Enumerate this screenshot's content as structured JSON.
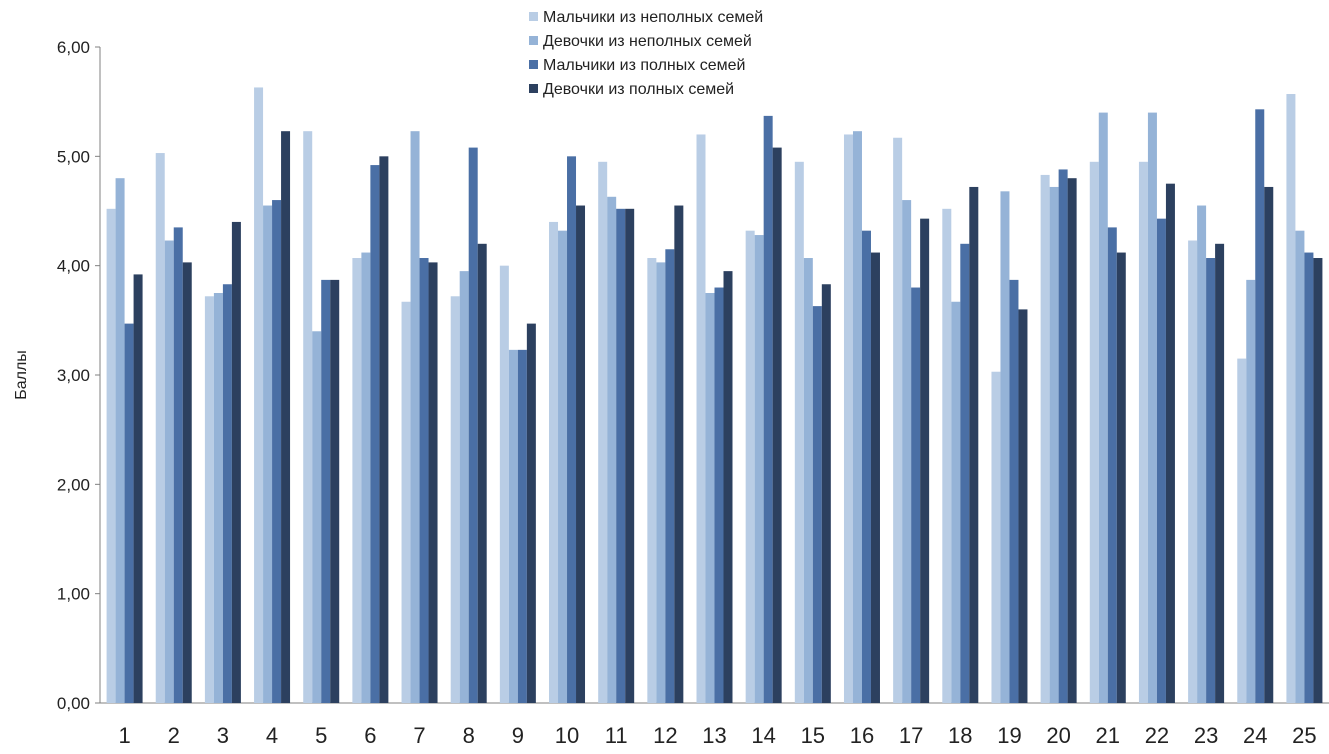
{
  "chart_data": {
    "type": "bar",
    "title": "",
    "xlabel": "",
    "ylabel": "Баллы",
    "ylim": [
      0,
      6
    ],
    "yticks": [
      "0,00",
      "1,00",
      "2,00",
      "3,00",
      "4,00",
      "5,00",
      "6,00"
    ],
    "grid": false,
    "legend_position": "top-center",
    "categories": [
      "1",
      "2",
      "3",
      "4",
      "5",
      "6",
      "7",
      "8",
      "9",
      "10",
      "11",
      "12",
      "13",
      "14",
      "15",
      "16",
      "17",
      "18",
      "19",
      "20",
      "21",
      "22",
      "23",
      "24",
      "25"
    ],
    "series": [
      {
        "name": "Мальчики из неполных семей",
        "color": "#b9cde5",
        "values": [
          4.52,
          5.03,
          3.72,
          5.63,
          5.23,
          4.07,
          3.67,
          3.72,
          4.0,
          4.4,
          4.95,
          4.07,
          5.2,
          4.32,
          4.95,
          5.2,
          5.17,
          4.52,
          3.03,
          4.83,
          4.95,
          4.95,
          4.23,
          3.15,
          5.57
        ]
      },
      {
        "name": "Девочки из неполных семей",
        "color": "#95b3d7",
        "values": [
          4.8,
          4.23,
          3.75,
          4.55,
          3.4,
          4.12,
          5.23,
          3.95,
          3.23,
          4.32,
          4.63,
          4.03,
          3.75,
          4.28,
          4.07,
          5.23,
          4.6,
          3.67,
          4.68,
          4.72,
          5.4,
          5.4,
          4.55,
          3.87,
          4.32
        ]
      },
      {
        "name": "Мальчики из полных семей",
        "color": "#4a6fa5",
        "values": [
          3.47,
          4.35,
          3.83,
          4.6,
          3.87,
          4.92,
          4.07,
          5.08,
          3.23,
          5.0,
          4.52,
          4.15,
          3.8,
          5.37,
          3.63,
          4.32,
          3.8,
          4.2,
          3.87,
          4.88,
          4.35,
          4.43,
          4.07,
          5.43,
          4.12
        ]
      },
      {
        "name": "Девочки из полных семей",
        "color": "#2c405f",
        "values": [
          3.92,
          4.03,
          4.4,
          5.23,
          3.87,
          5.0,
          4.03,
          4.2,
          3.47,
          4.55,
          4.52,
          4.55,
          3.95,
          5.08,
          3.83,
          4.12,
          4.43,
          4.72,
          3.6,
          4.8,
          4.12,
          4.75,
          4.2,
          4.72,
          4.07
        ]
      }
    ]
  }
}
